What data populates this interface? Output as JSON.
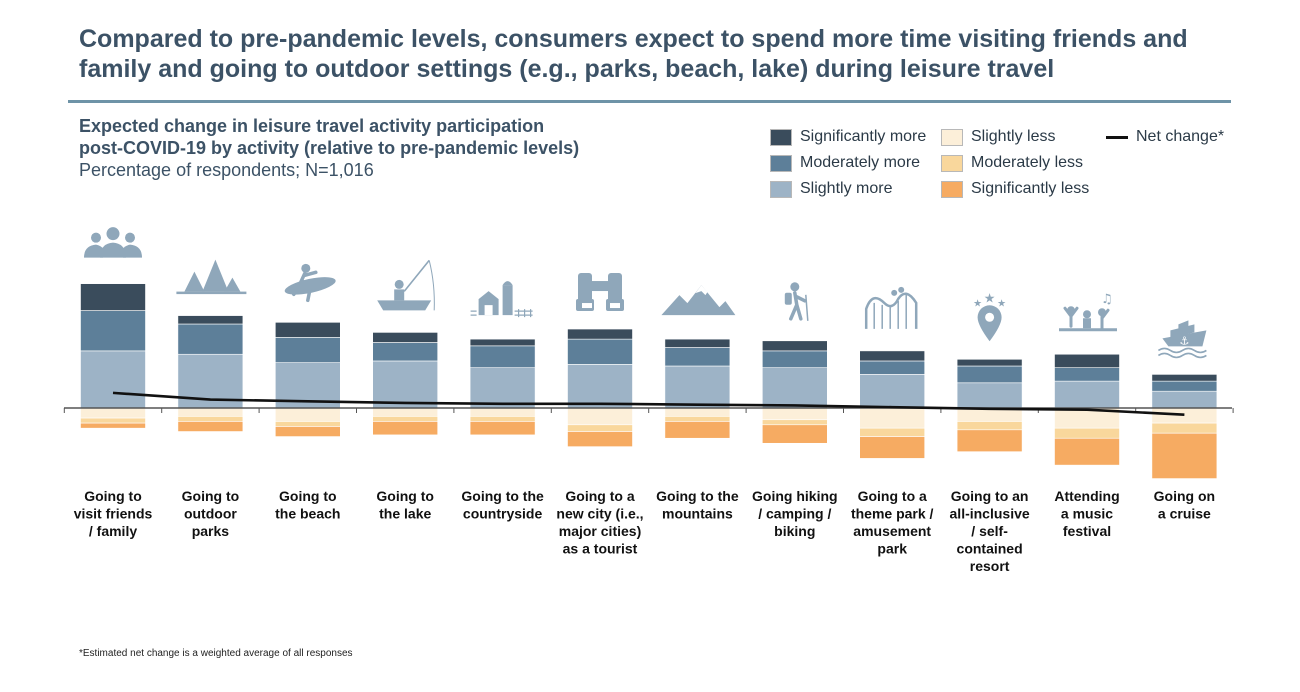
{
  "title": "Compared to pre-pandemic levels, consumers expect to spend more time visiting friends and family and going to outdoor settings (e.g., parks, beach, lake) during leisure travel",
  "subtitle": {
    "line1": "Expected change in leisure travel activity participation",
    "line2": "post-COVID-19 by activity (relative to pre-pandemic levels)",
    "note": "Percentage of respondents; N=1,016"
  },
  "footnote": "*Estimated net change is a weighted average of all responses",
  "colors": {
    "sig_more": "#3a4c5c",
    "mod_more": "#5d7f99",
    "sl_more": "#9db3c6",
    "sl_less": "#fcefd9",
    "mod_less": "#f9d79c",
    "sig_less": "#f6ab62",
    "net": "#111111",
    "axis": "#555555",
    "icon": "#8fa7ba"
  },
  "chart_data": {
    "type": "bar",
    "stacked": true,
    "unit": "% of respondents",
    "title": "Expected change in leisure travel activity participation post-COVID-19 by activity (relative to pre-pandemic levels)",
    "categories": [
      "Going to visit friends / family",
      "Going to outdoor parks",
      "Going to the beach",
      "Going to the lake",
      "Going to the countryside",
      "Going to a new city (i.e., major cities) as a tourist",
      "Going to the mountains",
      "Going hiking / camping / biking",
      "Going to a theme park / amusement park",
      "Going to an all-inclusive / self-contained resort",
      "Attending a music festival",
      "Going on a cruise"
    ],
    "category_lines": [
      [
        "Going to",
        "visit friends",
        "/ family"
      ],
      [
        "Going to",
        "outdoor",
        "parks"
      ],
      [
        "Going to",
        "the beach"
      ],
      [
        "Going to",
        "the lake"
      ],
      [
        "Going to the",
        "countryside"
      ],
      [
        "Going to a",
        "new city (i.e.,",
        "major cities)",
        "as a tourist"
      ],
      [
        "Going to the",
        "mountains"
      ],
      [
        "Going hiking",
        "/ camping /",
        "biking"
      ],
      [
        "Going to a",
        "theme park /",
        "amusement",
        "park"
      ],
      [
        "Going to an",
        "all-inclusive",
        "/ self-",
        "contained",
        "resort"
      ],
      [
        "Attending",
        "a music",
        "festival"
      ],
      [
        "Going on",
        "a cruise"
      ]
    ],
    "icons": [
      "people-icon",
      "trees-icon",
      "surfer-icon",
      "fishing-boat-icon",
      "barn-silo-icon",
      "binoculars-icon",
      "mountains-icon",
      "hiker-icon",
      "roller-coaster-icon",
      "resort-pin-icon",
      "music-festival-icon",
      "cruise-ship-icon"
    ],
    "series": [
      {
        "name": "Significantly more",
        "key": "sig_more",
        "values": [
          16,
          5,
          9,
          6,
          4,
          6,
          5,
          6,
          6,
          4,
          8,
          4
        ]
      },
      {
        "name": "Moderately more",
        "key": "mod_more",
        "values": [
          24,
          18,
          15,
          11,
          13,
          15,
          11,
          10,
          8,
          10,
          8,
          6
        ]
      },
      {
        "name": "Slightly more",
        "key": "sl_more",
        "values": [
          34,
          32,
          27,
          28,
          24,
          26,
          25,
          24,
          20,
          15,
          16,
          10
        ]
      },
      {
        "name": "Slightly less",
        "key": "sl_less",
        "values": [
          -6,
          -5,
          -8,
          -5,
          -5,
          -10,
          -5,
          -7,
          -12,
          -8,
          -12,
          -9
        ]
      },
      {
        "name": "Moderately less",
        "key": "mod_less",
        "values": [
          -3,
          -3,
          -3,
          -3,
          -3,
          -4,
          -3,
          -3,
          -5,
          -5,
          -6,
          -6
        ]
      },
      {
        "name": "Significantly less",
        "key": "sig_less",
        "values": [
          -3,
          -6,
          -6,
          -8,
          -8,
          -9,
          -10,
          -11,
          -13,
          -13,
          -16,
          -27
        ]
      }
    ],
    "net_change": {
      "name": "Net change*",
      "values": [
        9,
        5,
        4,
        3,
        2.5,
        2.5,
        2,
        1.5,
        0.5,
        -0.5,
        -1,
        -4
      ]
    },
    "ylim": [
      -45,
      80
    ],
    "legend": [
      "Significantly more",
      "Moderately more",
      "Slightly more",
      "Slightly less",
      "Moderately less",
      "Significantly less",
      "Net change*"
    ],
    "legend_position": "top-right",
    "grid": false
  }
}
